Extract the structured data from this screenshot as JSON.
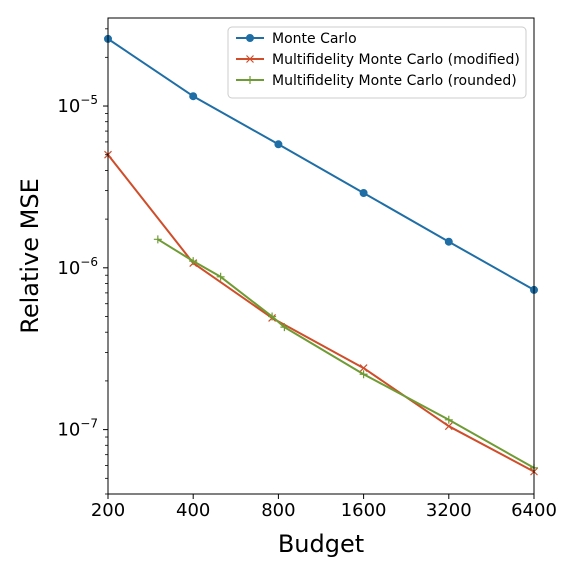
{
  "chart_data": {
    "type": "line",
    "xscale": "log2",
    "yscale": "log10",
    "xlabel": "Budget",
    "ylabel": "Relative MSE",
    "xlim": [
      200,
      6400
    ],
    "ylim": [
      4e-08,
      3.5e-05
    ],
    "x_ticks": [
      200,
      400,
      800,
      1600,
      3200,
      6400
    ],
    "x_tick_labels": [
      "200",
      "400",
      "800",
      "1600",
      "3200",
      "6400"
    ],
    "y_ticks": [
      1e-07,
      1e-06,
      1e-05
    ],
    "y_tick_labels": [
      {
        "base": "10",
        "exp": "−7"
      },
      {
        "base": "10",
        "exp": "−6"
      },
      {
        "base": "10",
        "exp": "−5"
      }
    ],
    "legend_position": "top-right",
    "grid": false,
    "series": [
      {
        "name": "Monte Carlo",
        "color": "#1f6ea6",
        "marker": "circle",
        "points": [
          {
            "x": 200,
            "y": 2.6e-05
          },
          {
            "x": 400,
            "y": 1.15e-05
          },
          {
            "x": 800,
            "y": 5.8e-06
          },
          {
            "x": 1600,
            "y": 2.9e-06
          },
          {
            "x": 3200,
            "y": 1.45e-06
          },
          {
            "x": 6400,
            "y": 7.3e-07
          }
        ]
      },
      {
        "name": "Multifidelity Monte Carlo (modified)",
        "color": "#d04d2a",
        "marker": "x",
        "points": [
          {
            "x": 200,
            "y": 5e-06
          },
          {
            "x": 400,
            "y": 1.07e-06
          },
          {
            "x": 760,
            "y": 4.9e-07
          },
          {
            "x": 1600,
            "y": 2.4e-07
          },
          {
            "x": 3200,
            "y": 1.05e-07
          },
          {
            "x": 6400,
            "y": 5.5e-08
          }
        ]
      },
      {
        "name": "Multifidelity Monte Carlo (rounded)",
        "color": "#6f9b34",
        "marker": "plus",
        "points": [
          {
            "x": 300,
            "y": 1.5e-06
          },
          {
            "x": 400,
            "y": 1.1e-06
          },
          {
            "x": 500,
            "y": 8.8e-07
          },
          {
            "x": 760,
            "y": 5e-07
          },
          {
            "x": 840,
            "y": 4.3e-07
          },
          {
            "x": 1600,
            "y": 2.2e-07
          },
          {
            "x": 3200,
            "y": 1.15e-07
          },
          {
            "x": 6400,
            "y": 5.8e-08
          }
        ]
      }
    ]
  }
}
